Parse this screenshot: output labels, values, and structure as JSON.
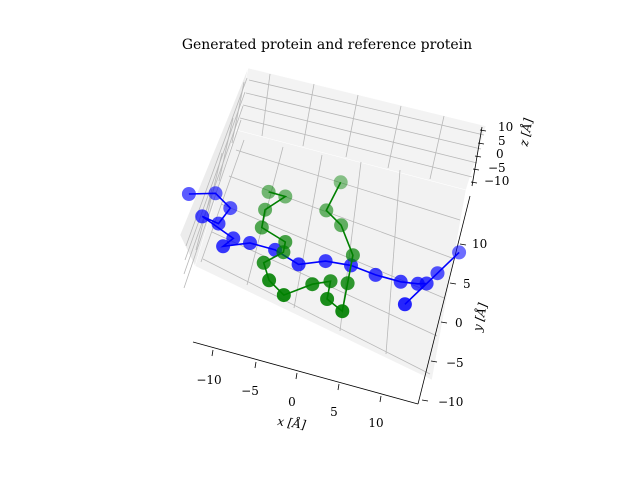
{
  "chart_data": {
    "type": "scatter",
    "projection": "3d",
    "title": "Generated protein and reference protein",
    "xlabel": "x [Å]",
    "ylabel": "y [Å]",
    "zlabel": "z [Å]",
    "x_ticks": [
      "−10",
      "−5",
      "0",
      "5",
      "10"
    ],
    "y_ticks": [
      "−10",
      "−5",
      "0",
      "5",
      "10"
    ],
    "z_ticks": [
      "10",
      "5",
      "0",
      "−5",
      "−10"
    ],
    "grid": true,
    "colors": {
      "series_1": "#0000ff",
      "series_2": "#008000",
      "pane": "#f2f2f2",
      "grid": "#b0b0b0"
    },
    "series": [
      {
        "color": "#0000ff",
        "points": [
          {
            "x": -14,
            "y": 6,
            "z": 2
          },
          {
            "x": -11,
            "y": 7,
            "z": 2
          },
          {
            "x": -9,
            "y": 6,
            "z": 1
          },
          {
            "x": -10,
            "y": 4,
            "z": 0
          },
          {
            "x": -12,
            "y": 4,
            "z": 1
          },
          {
            "x": -8,
            "y": 3,
            "z": -1
          },
          {
            "x": -9,
            "y": 2,
            "z": -2
          },
          {
            "x": -6,
            "y": 3,
            "z": -1
          },
          {
            "x": -3,
            "y": 3,
            "z": -1
          },
          {
            "x": 0,
            "y": 2,
            "z": -1
          },
          {
            "x": 3,
            "y": 3,
            "z": 0
          },
          {
            "x": 6,
            "y": 3,
            "z": 1
          },
          {
            "x": 9,
            "y": 3,
            "z": 0
          },
          {
            "x": 12,
            "y": 3,
            "z": 0
          },
          {
            "x": 14,
            "y": 3,
            "z": 1
          },
          {
            "x": 15,
            "y": 3,
            "z": 2
          },
          {
            "x": 13,
            "y": 0,
            "z": 1
          },
          {
            "x": 16,
            "y": 5,
            "z": 1
          },
          {
            "x": 18,
            "y": 8,
            "z": 2
          }
        ]
      },
      {
        "color": "#008000",
        "points": [
          {
            "x": 3,
            "y": 12,
            "z": 4
          },
          {
            "x": 2,
            "y": 8,
            "z": 4
          },
          {
            "x": 4,
            "y": 7,
            "z": 3
          },
          {
            "x": 6,
            "y": 4,
            "z": 2
          },
          {
            "x": 6,
            "y": 1,
            "z": 0
          },
          {
            "x": 6,
            "y": -2,
            "z": -2
          },
          {
            "x": 4,
            "y": -1,
            "z": -2
          },
          {
            "x": 4,
            "y": 1,
            "z": -1
          },
          {
            "x": 2,
            "y": 0,
            "z": -1
          },
          {
            "x": -1,
            "y": -2,
            "z": -2
          },
          {
            "x": -3,
            "y": -1,
            "z": -1
          },
          {
            "x": -4,
            "y": 1,
            "z": -1
          },
          {
            "x": -2,
            "y": 3,
            "z": -1
          },
          {
            "x": -2,
            "y": 4,
            "z": 0
          },
          {
            "x": -5,
            "y": 5,
            "z": 0
          },
          {
            "x": -5,
            "y": 7,
            "z": 1
          },
          {
            "x": -3,
            "y": 9,
            "z": 2
          },
          {
            "x": -5,
            "y": 9,
            "z": 2
          }
        ]
      }
    ]
  }
}
